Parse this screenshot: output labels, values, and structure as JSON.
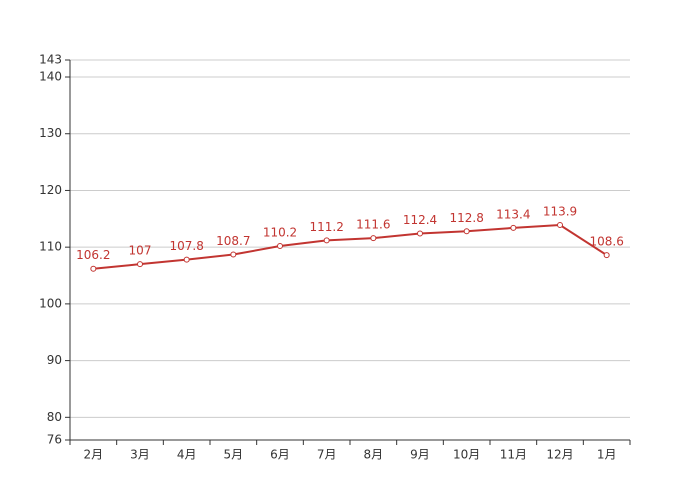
{
  "chart_data": {
    "type": "line",
    "categories": [
      "2月",
      "3月",
      "4月",
      "5月",
      "6月",
      "7月",
      "8月",
      "9月",
      "10月",
      "11月",
      "12月",
      "1月"
    ],
    "values": [
      106.2,
      107,
      107.8,
      108.7,
      110.2,
      111.2,
      111.6,
      112.4,
      112.8,
      113.4,
      113.9,
      108.6
    ],
    "color": "#c23531",
    "ylim": [
      76,
      143
    ],
    "yticks": [
      76,
      80,
      90,
      100,
      110,
      120,
      130,
      140,
      143
    ],
    "grid": true
  }
}
